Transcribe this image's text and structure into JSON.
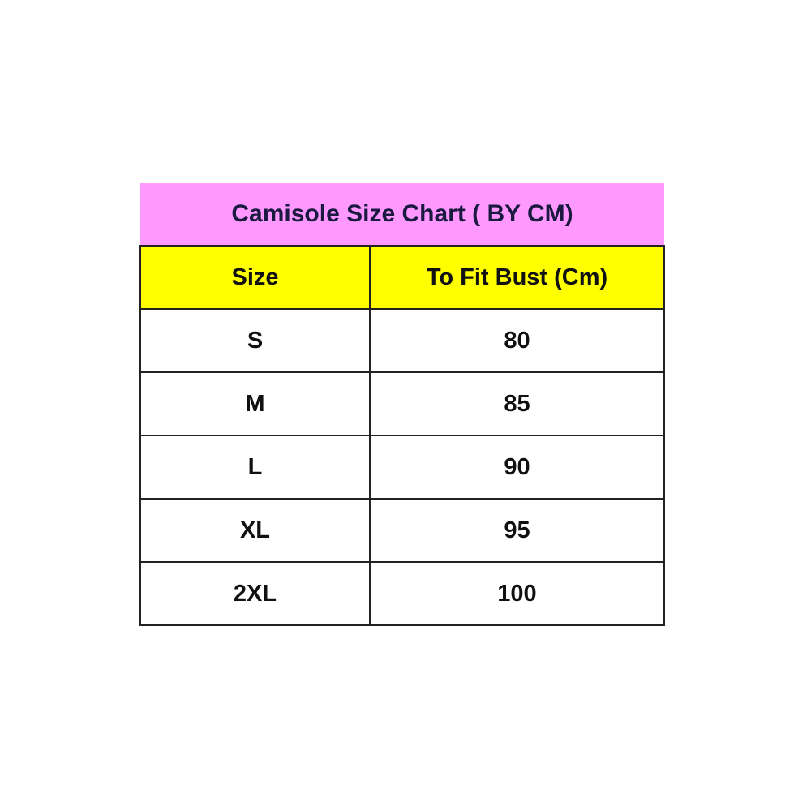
{
  "title": "Camisole Size Chart ( BY CM)",
  "headers": [
    "Size",
    "To Fit Bust (Cm)"
  ],
  "rows": [
    {
      "size": "S",
      "bust": "80"
    },
    {
      "size": "M",
      "bust": "85"
    },
    {
      "size": "L",
      "bust": "90"
    },
    {
      "size": "XL",
      "bust": "95"
    },
    {
      "size": "2XL",
      "bust": "100"
    }
  ],
  "colors": {
    "title_bg": "#ff99ff",
    "header_bg": "#ffff00"
  }
}
